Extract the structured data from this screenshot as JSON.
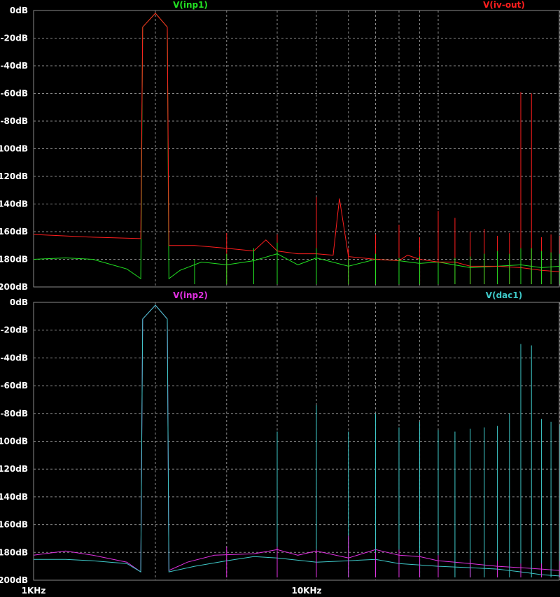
{
  "chart_data": [
    {
      "type": "line",
      "x_scale": "log",
      "xlim": [
        1000,
        20000
      ],
      "ylim": [
        -200,
        0
      ],
      "y_ticks": [
        "0dB",
        "-20dB",
        "-40dB",
        "-60dB",
        "-80dB",
        "100dB",
        "120dB",
        "140dB",
        "160dB",
        "180dB",
        "200dB"
      ],
      "grid": true,
      "series": [
        {
          "name": "V(inp1)",
          "color": "#22e022",
          "x": [
            1000,
            1200,
            1400,
            1700,
            1840,
            1860,
            2000,
            2140,
            2160,
            2300,
            2600,
            3000,
            3500,
            4000,
            4500,
            5000,
            6000,
            7000,
            8000,
            9000,
            10000,
            12000,
            14000,
            16000,
            18000,
            20000
          ],
          "y": [
            -180,
            -179,
            -180,
            -187,
            -194,
            -12,
            -2,
            -12,
            -194,
            -188,
            -182,
            -184,
            -181,
            -176,
            -184,
            -179,
            -185,
            -180,
            -181,
            -183,
            -182,
            -186,
            -185,
            -184,
            -186,
            -185
          ]
        },
        {
          "name": "V(iv-out)",
          "color": "#ff1e1e",
          "x": [
            1000,
            1400,
            1840,
            1860,
            2000,
            2140,
            2160,
            2500,
            3000,
            3500,
            3750,
            4000,
            4500,
            5000,
            5500,
            5700,
            6000,
            7000,
            8000,
            8400,
            9000,
            10000,
            11000,
            12000,
            14000,
            16000,
            18000,
            20000
          ],
          "y": [
            -162,
            -164,
            -165,
            -12,
            -2,
            -12,
            -170,
            -170,
            -172,
            -174,
            -166,
            -174,
            -176,
            -176,
            -177,
            -136,
            -178,
            -180,
            -181,
            -177,
            -180,
            -182,
            -182,
            -185,
            -185,
            -186,
            -188,
            -189
          ]
        }
      ],
      "peaks": [
        {
          "series": "V(iv-out)",
          "x": [
            3000,
            4000,
            5000,
            6000,
            7000,
            8000,
            9000,
            10000,
            11000,
            12000,
            13000,
            14000,
            15000,
            16000,
            17000,
            18000,
            19000,
            20000
          ],
          "y": [
            -161,
            -162,
            -135,
            -172,
            -162,
            -155,
            -164,
            -145,
            -150,
            -160,
            -158,
            -163,
            -161,
            -59,
            -60,
            -164,
            -162,
            -163
          ]
        },
        {
          "series": "V(inp1)",
          "x": [
            2500,
            3000,
            3500,
            4000,
            5000,
            6000,
            7000,
            8000,
            9000,
            10000,
            11000,
            12000,
            13000,
            14000,
            15000,
            16000,
            17000,
            18000,
            19000,
            20000
          ],
          "y": [
            -180,
            -176,
            -172,
            -168,
            -172,
            -180,
            -176,
            -179,
            -178,
            -182,
            -179,
            -178,
            -176,
            -174,
            -176,
            -172,
            -172,
            -174,
            -175,
            -176
          ]
        }
      ]
    },
    {
      "type": "line",
      "x_scale": "log",
      "xlim": [
        1000,
        20000
      ],
      "ylim": [
        -200,
        0
      ],
      "x_ticks": [
        "1KHz",
        "10KHz"
      ],
      "y_ticks": [
        "0dB",
        "-20dB",
        "-40dB",
        "-60dB",
        "-80dB",
        "100dB",
        "120dB",
        "140dB",
        "160dB",
        "180dB",
        "200dB"
      ],
      "grid": true,
      "series": [
        {
          "name": "V(inp2)",
          "color": "#e030e0",
          "x": [
            1000,
            1200,
            1400,
            1700,
            1840,
            1860,
            2000,
            2140,
            2160,
            2400,
            2800,
            3500,
            4000,
            4500,
            5000,
            6000,
            7000,
            8000,
            9000,
            10000,
            11000,
            12000,
            14000,
            16000,
            18000,
            20000
          ],
          "y": [
            -182,
            -179,
            -182,
            -187,
            -194,
            -12,
            -2,
            -12,
            -193,
            -187,
            -182,
            -181,
            -178,
            -182,
            -179,
            -184,
            -178,
            -182,
            -183,
            -186,
            -187,
            -188,
            -190,
            -191,
            -192,
            -193
          ]
        },
        {
          "name": "V(dac1)",
          "color": "#3ec8c8",
          "x": [
            1000,
            1200,
            1400,
            1700,
            1840,
            1860,
            2000,
            2140,
            2160,
            2500,
            3000,
            3500,
            4000,
            5000,
            6000,
            7000,
            8000,
            9000,
            10000,
            12000,
            14000,
            16000,
            18000,
            20000
          ],
          "y": [
            -185,
            -185,
            -186,
            -188,
            -194,
            -12,
            -2,
            -12,
            -194,
            -190,
            -186,
            -183,
            -184,
            -187,
            -186,
            -185,
            -188,
            -189,
            -190,
            -191,
            -192,
            -194,
            -196,
            -197
          ]
        }
      ],
      "peaks": [
        {
          "series": "V(dac1)",
          "x": [
            4000,
            5000,
            6000,
            7000,
            8000,
            9000,
            10000,
            11000,
            12000,
            13000,
            14000,
            15000,
            16000,
            17000,
            18000,
            19000,
            20000
          ],
          "y": [
            -93,
            -74,
            -93,
            -80,
            -90,
            -86,
            -92,
            -93,
            -91,
            -90,
            -89,
            -80,
            -30,
            -31,
            -84,
            -86,
            -88
          ]
        },
        {
          "series": "V(inp2)",
          "x": [
            3000,
            4000,
            5000,
            6000,
            7000,
            8000,
            9000,
            10000,
            12000,
            14000,
            16000,
            18000,
            20000
          ],
          "y": [
            -176,
            -176,
            -178,
            -168,
            -180,
            -178,
            -182,
            -182,
            -185,
            -186,
            -188,
            -188,
            -186
          ]
        }
      ]
    }
  ]
}
